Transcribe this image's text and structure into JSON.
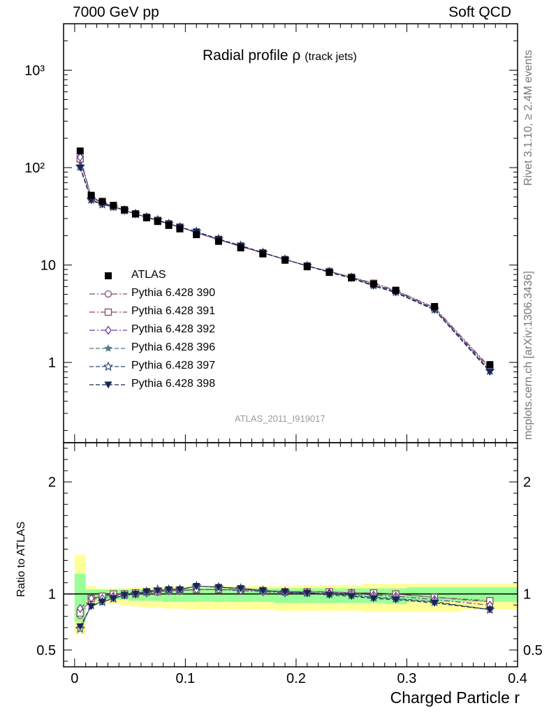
{
  "header": {
    "left": "7000 GeV pp",
    "right": "Soft QCD"
  },
  "side_labels": {
    "top": "Rivet 3.1.10, ≥ 2.4M events",
    "bottom": "mcplots.cern.ch [arXiv:1306.3436]"
  },
  "chart_data": [
    {
      "panel": "main",
      "type": "line",
      "title": "Radial profile ρ",
      "title_suffix": "(track jets)",
      "analysis_label": "ATLAS_2011_I919017",
      "yscale": "log",
      "ylim": [
        0.15,
        3000
      ],
      "xlim": [
        -0.01,
        0.4
      ],
      "ytick_labels": [
        "1",
        "10",
        "10²",
        "10³"
      ],
      "legend_position": "middle-left",
      "x": [
        0.005,
        0.015,
        0.025,
        0.035,
        0.045,
        0.055,
        0.065,
        0.075,
        0.085,
        0.095,
        0.11,
        0.13,
        0.15,
        0.17,
        0.19,
        0.21,
        0.23,
        0.25,
        0.27,
        0.29,
        0.325,
        0.375
      ],
      "series": [
        {
          "name": "ATLAS",
          "color": "#000000",
          "marker": "square-filled",
          "dash": "none",
          "values": [
            148,
            52,
            45,
            41,
            37,
            33.5,
            30.5,
            28,
            25.5,
            23.5,
            20.5,
            17.5,
            15,
            13,
            11.2,
            9.6,
            8.4,
            7.4,
            6.4,
            5.5,
            3.75,
            0.95
          ]
        },
        {
          "name": "Pythia 6.428 390",
          "color": "#7a4a6f",
          "marker": "circle-open",
          "dash": "8,3,2,3",
          "values": [
            120,
            50,
            44,
            40,
            36.5,
            33.5,
            31,
            28.5,
            26.5,
            24.5,
            21.5,
            18.2,
            15.5,
            13.3,
            11.4,
            9.8,
            8.6,
            7.5,
            6.5,
            5.5,
            3.65,
            0.88
          ]
        },
        {
          "name": "Pythia 6.428 391",
          "color": "#8a4b55",
          "marker": "square-open",
          "dash": "8,3,2,3",
          "values": [
            123,
            50,
            44,
            40,
            36.5,
            33.5,
            31,
            28.5,
            26.5,
            24.5,
            21.5,
            18.2,
            15.5,
            13.3,
            11.4,
            9.8,
            8.6,
            7.5,
            6.5,
            5.5,
            3.65,
            0.89
          ]
        },
        {
          "name": "Pythia 6.428 392",
          "color": "#6a3d96",
          "marker": "diamond-open",
          "dash": "8,3,2,3",
          "values": [
            128,
            50,
            43,
            40,
            36.5,
            33.5,
            31,
            28.5,
            26.5,
            24.5,
            21.5,
            18.2,
            15.5,
            13.3,
            11.4,
            9.8,
            8.6,
            7.5,
            6.3,
            5.4,
            3.55,
            0.85
          ]
        },
        {
          "name": "Pythia 6.428 396",
          "color": "#4f7a87",
          "marker": "star-filled",
          "dash": "6,3",
          "values": [
            103,
            47,
            42,
            39.5,
            36.5,
            33.5,
            31,
            29,
            26.5,
            24.5,
            22,
            18.5,
            15.8,
            13.4,
            11.4,
            9.8,
            8.5,
            7.4,
            6.2,
            5.3,
            3.5,
            0.82
          ]
        },
        {
          "name": "Pythia 6.428 397",
          "color": "#2e4a78",
          "marker": "star-open",
          "dash": "6,3",
          "values": [
            102,
            47,
            42,
            39.5,
            36.5,
            33.5,
            31,
            29,
            26.5,
            24.5,
            22,
            18.5,
            15.8,
            13.4,
            11.4,
            9.8,
            8.5,
            7.4,
            6.2,
            5.3,
            3.5,
            0.82
          ]
        },
        {
          "name": "Pythia 6.428 398",
          "color": "#1a2550",
          "marker": "triangle-down-filled",
          "dash": "6,3",
          "values": [
            100,
            46,
            42,
            39.5,
            36.5,
            33.5,
            31,
            29,
            26.5,
            24.5,
            22,
            18.5,
            15.8,
            13.4,
            11.4,
            9.8,
            8.4,
            7.3,
            6.1,
            5.2,
            3.45,
            0.8
          ]
        }
      ]
    },
    {
      "panel": "ratio",
      "type": "line",
      "ylabel": "Ratio to ATLAS",
      "xlabel": "Charged Particle r",
      "ylim": [
        0.35,
        2.35
      ],
      "xlim": [
        -0.01,
        0.4
      ],
      "yticks": [
        0.5,
        1,
        2
      ],
      "ytick_labels": [
        "0.5",
        "1",
        "2"
      ],
      "xticks": [
        0,
        0.1,
        0.2,
        0.3,
        0.4
      ],
      "xtick_labels": [
        "0",
        "0.1",
        "0.2",
        "0.3",
        "0.4"
      ],
      "band_edges": [
        0.0,
        0.01,
        0.02,
        0.03,
        0.04,
        0.05,
        0.06,
        0.07,
        0.08,
        0.09,
        0.1,
        0.12,
        0.14,
        0.16,
        0.18,
        0.2,
        0.22,
        0.24,
        0.26,
        0.28,
        0.3,
        0.35,
        0.4
      ],
      "band_outer": {
        "color": "#ffff99",
        "lo": [
          0.64,
          0.9,
          0.91,
          0.91,
          0.9,
          0.89,
          0.88,
          0.88,
          0.87,
          0.87,
          0.86,
          0.86,
          0.86,
          0.86,
          0.85,
          0.85,
          0.85,
          0.85,
          0.84,
          0.84,
          0.84,
          0.86
        ],
        "hi": [
          1.35,
          1.07,
          1.05,
          1.05,
          1.05,
          1.06,
          1.06,
          1.06,
          1.07,
          1.07,
          1.07,
          1.07,
          1.07,
          1.07,
          1.07,
          1.08,
          1.08,
          1.08,
          1.09,
          1.09,
          1.09,
          1.09
        ]
      },
      "band_inner": {
        "color": "#99ff99",
        "lo": [
          0.75,
          0.94,
          0.95,
          0.95,
          0.95,
          0.94,
          0.94,
          0.94,
          0.93,
          0.93,
          0.93,
          0.93,
          0.93,
          0.93,
          0.92,
          0.92,
          0.92,
          0.92,
          0.92,
          0.91,
          0.93,
          0.93
        ],
        "hi": [
          1.18,
          1.04,
          1.04,
          1.04,
          1.04,
          1.04,
          1.04,
          1.04,
          1.04,
          1.05,
          1.05,
          1.05,
          1.05,
          1.05,
          1.05,
          1.05,
          1.05,
          1.05,
          1.05,
          1.05,
          1.06,
          1.06
        ]
      },
      "x": [
        0.005,
        0.015,
        0.025,
        0.035,
        0.045,
        0.055,
        0.065,
        0.075,
        0.085,
        0.095,
        0.11,
        0.13,
        0.15,
        0.17,
        0.19,
        0.21,
        0.23,
        0.25,
        0.27,
        0.29,
        0.325,
        0.375
      ],
      "series": [
        {
          "name": "Pythia 6.428 390",
          "values": [
            0.81,
            0.96,
            0.98,
            0.99,
            1.0,
            1.01,
            1.02,
            1.02,
            1.03,
            1.03,
            1.04,
            1.04,
            1.04,
            1.03,
            1.02,
            1.02,
            1.02,
            1.01,
            1.01,
            1.0,
            0.97,
            0.93
          ]
        },
        {
          "name": "Pythia 6.428 391",
          "values": [
            0.83,
            0.96,
            0.98,
            1.0,
            1.0,
            1.01,
            1.02,
            1.02,
            1.03,
            1.03,
            1.04,
            1.04,
            1.04,
            1.03,
            1.02,
            1.02,
            1.02,
            1.01,
            1.01,
            1.0,
            0.97,
            0.94
          ]
        },
        {
          "name": "Pythia 6.428 392",
          "values": [
            0.87,
            0.96,
            0.96,
            0.98,
            0.99,
            1.0,
            1.01,
            1.02,
            1.03,
            1.03,
            1.04,
            1.04,
            1.03,
            1.02,
            1.01,
            1.01,
            1.01,
            1.01,
            0.99,
            0.98,
            0.95,
            0.9
          ]
        },
        {
          "name": "Pythia 6.428 396",
          "values": [
            0.7,
            0.9,
            0.93,
            0.96,
            0.99,
            1.0,
            1.02,
            1.04,
            1.04,
            1.04,
            1.07,
            1.06,
            1.05,
            1.03,
            1.02,
            1.01,
            1.0,
            0.99,
            0.97,
            0.96,
            0.93,
            0.86
          ]
        },
        {
          "name": "Pythia 6.428 397",
          "values": [
            0.69,
            0.9,
            0.93,
            0.96,
            0.99,
            1.0,
            1.02,
            1.04,
            1.04,
            1.04,
            1.07,
            1.06,
            1.05,
            1.03,
            1.02,
            1.01,
            1.0,
            0.99,
            0.97,
            0.96,
            0.93,
            0.86
          ]
        },
        {
          "name": "Pythia 6.428 398",
          "values": [
            0.71,
            0.89,
            0.93,
            0.96,
            0.99,
            1.0,
            1.02,
            1.03,
            1.04,
            1.04,
            1.07,
            1.06,
            1.05,
            1.03,
            1.02,
            1.01,
            0.99,
            0.98,
            0.96,
            0.95,
            0.92,
            0.86
          ]
        }
      ]
    }
  ]
}
